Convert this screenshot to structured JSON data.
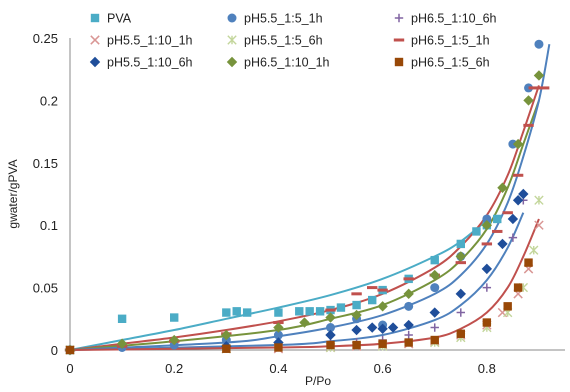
{
  "chart_data": {
    "type": "scatter",
    "xlabel": "P/Po",
    "ylabel": "gwater/gPVA",
    "xlim": [
      0,
      0.95
    ],
    "ylim": [
      0,
      0.25
    ],
    "xticks": [
      "0",
      "0.2",
      "0.4",
      "0.6",
      "0.8"
    ],
    "yticks": [
      "0",
      "0.05",
      "0.1",
      "0.15",
      "0.2",
      "0.25"
    ],
    "grid": false,
    "legend_position": "top",
    "series": [
      {
        "name": "PVA",
        "marker": "square",
        "color": "#4bacc6",
        "points": [
          [
            0,
            0
          ],
          [
            0.1,
            0.025
          ],
          [
            0.2,
            0.026
          ],
          [
            0.3,
            0.03
          ],
          [
            0.32,
            0.031
          ],
          [
            0.34,
            0.03
          ],
          [
            0.4,
            0.03
          ],
          [
            0.44,
            0.031
          ],
          [
            0.46,
            0.031
          ],
          [
            0.48,
            0.031
          ],
          [
            0.5,
            0.032
          ],
          [
            0.52,
            0.034
          ],
          [
            0.55,
            0.036
          ],
          [
            0.58,
            0.04
          ],
          [
            0.6,
            0.048
          ],
          [
            0.65,
            0.057
          ],
          [
            0.7,
            0.072
          ],
          [
            0.75,
            0.085
          ],
          [
            0.78,
            0.095
          ],
          [
            0.8,
            0.1
          ],
          [
            0.82,
            0.105
          ]
        ]
      },
      {
        "name": "pH5.5_1:5_1h",
        "marker": "circle",
        "color": "#4f81bd",
        "points": [
          [
            0,
            0
          ],
          [
            0.1,
            0.002
          ],
          [
            0.2,
            0.004
          ],
          [
            0.3,
            0.008
          ],
          [
            0.4,
            0.012
          ],
          [
            0.5,
            0.018
          ],
          [
            0.55,
            0.025
          ],
          [
            0.6,
            0.02
          ],
          [
            0.65,
            0.035
          ],
          [
            0.7,
            0.05
          ],
          [
            0.75,
            0.075
          ],
          [
            0.8,
            0.105
          ],
          [
            0.85,
            0.165
          ],
          [
            0.88,
            0.21
          ],
          [
            0.9,
            0.245
          ]
        ]
      },
      {
        "name": "pH6.5_1:10_6h",
        "marker": "plus",
        "color": "#8064a2",
        "points": [
          [
            0,
            0
          ],
          [
            0.3,
            0.002
          ],
          [
            0.4,
            0.004
          ],
          [
            0.5,
            0.005
          ],
          [
            0.55,
            0.006
          ],
          [
            0.6,
            0.008
          ],
          [
            0.65,
            0.012
          ],
          [
            0.7,
            0.018
          ],
          [
            0.75,
            0.03
          ],
          [
            0.8,
            0.05
          ],
          [
            0.85,
            0.09
          ],
          [
            0.87,
            0.12
          ]
        ]
      },
      {
        "name": "pH5.5_1:10_1h",
        "marker": "x",
        "color": "#d99694",
        "points": [
          [
            0,
            0
          ],
          [
            0.3,
            0.001
          ],
          [
            0.4,
            0.001
          ],
          [
            0.5,
            0.002
          ],
          [
            0.55,
            0.003
          ],
          [
            0.6,
            0.004
          ],
          [
            0.65,
            0.005
          ],
          [
            0.7,
            0.007
          ],
          [
            0.75,
            0.012
          ],
          [
            0.8,
            0.02
          ],
          [
            0.83,
            0.03
          ],
          [
            0.86,
            0.045
          ],
          [
            0.88,
            0.065
          ],
          [
            0.9,
            0.1
          ]
        ]
      },
      {
        "name": "pH5.5_1:5_6h",
        "marker": "asterisk",
        "color": "#c3d69b",
        "points": [
          [
            0,
            0
          ],
          [
            0.3,
            0.001
          ],
          [
            0.5,
            0.002
          ],
          [
            0.6,
            0.003
          ],
          [
            0.7,
            0.006
          ],
          [
            0.75,
            0.01
          ],
          [
            0.8,
            0.018
          ],
          [
            0.84,
            0.03
          ],
          [
            0.87,
            0.05
          ],
          [
            0.89,
            0.08
          ],
          [
            0.9,
            0.12
          ]
        ]
      },
      {
        "name": "pH6.5_1:5_1h",
        "marker": "dash",
        "color": "#c0504d",
        "points": [
          [
            0,
            0
          ],
          [
            0.1,
            0.003
          ],
          [
            0.2,
            0.007
          ],
          [
            0.3,
            0.013
          ],
          [
            0.4,
            0.022
          ],
          [
            0.5,
            0.032
          ],
          [
            0.55,
            0.045
          ],
          [
            0.58,
            0.05
          ],
          [
            0.6,
            0.048
          ],
          [
            0.65,
            0.057
          ],
          [
            0.7,
            0.06
          ],
          [
            0.75,
            0.07
          ],
          [
            0.8,
            0.085
          ],
          [
            0.82,
            0.095
          ],
          [
            0.84,
            0.11
          ],
          [
            0.86,
            0.14
          ],
          [
            0.88,
            0.18
          ],
          [
            0.89,
            0.21
          ],
          [
            0.91,
            0.21
          ]
        ]
      },
      {
        "name": "pH5.5_1:10_6h",
        "marker": "diamond",
        "color": "#1f4e9a",
        "points": [
          [
            0,
            0
          ],
          [
            0.3,
            0.003
          ],
          [
            0.4,
            0.006
          ],
          [
            0.5,
            0.012
          ],
          [
            0.55,
            0.016
          ],
          [
            0.58,
            0.018
          ],
          [
            0.6,
            0.017
          ],
          [
            0.62,
            0.018
          ],
          [
            0.65,
            0.02
          ],
          [
            0.7,
            0.03
          ],
          [
            0.75,
            0.045
          ],
          [
            0.8,
            0.065
          ],
          [
            0.83,
            0.085
          ],
          [
            0.85,
            0.105
          ],
          [
            0.86,
            0.12
          ],
          [
            0.87,
            0.125
          ]
        ]
      },
      {
        "name": "pH6.5_1:10_1h",
        "marker": "diamond",
        "color": "#77933c",
        "points": [
          [
            0,
            0
          ],
          [
            0.1,
            0.005
          ],
          [
            0.2,
            0.008
          ],
          [
            0.3,
            0.012
          ],
          [
            0.4,
            0.018
          ],
          [
            0.45,
            0.022
          ],
          [
            0.5,
            0.026
          ],
          [
            0.55,
            0.028
          ],
          [
            0.6,
            0.035
          ],
          [
            0.65,
            0.045
          ],
          [
            0.7,
            0.06
          ],
          [
            0.75,
            0.075
          ],
          [
            0.8,
            0.1
          ],
          [
            0.83,
            0.13
          ],
          [
            0.86,
            0.165
          ],
          [
            0.88,
            0.2
          ],
          [
            0.9,
            0.22
          ]
        ]
      },
      {
        "name": "pH6.5_1:5_6h",
        "marker": "square",
        "color": "#984807",
        "points": [
          [
            0,
            0
          ],
          [
            0.3,
            0.001
          ],
          [
            0.4,
            0.002
          ],
          [
            0.5,
            0.004
          ],
          [
            0.55,
            0.004
          ],
          [
            0.6,
            0.005
          ],
          [
            0.65,
            0.006
          ],
          [
            0.7,
            0.008
          ],
          [
            0.75,
            0.013
          ],
          [
            0.8,
            0.022
          ],
          [
            0.84,
            0.035
          ],
          [
            0.86,
            0.05
          ],
          [
            0.88,
            0.07
          ]
        ]
      }
    ],
    "fit_lines": [
      {
        "color": "#4bacc6",
        "points": [
          [
            0,
            0
          ],
          [
            0.1,
            0.008
          ],
          [
            0.2,
            0.016
          ],
          [
            0.3,
            0.025
          ],
          [
            0.4,
            0.034
          ],
          [
            0.5,
            0.044
          ],
          [
            0.6,
            0.057
          ],
          [
            0.7,
            0.075
          ],
          [
            0.75,
            0.087
          ],
          [
            0.8,
            0.104
          ]
        ]
      },
      {
        "color": "#c0504d",
        "points": [
          [
            0,
            0
          ],
          [
            0.1,
            0.005
          ],
          [
            0.2,
            0.01
          ],
          [
            0.3,
            0.016
          ],
          [
            0.4,
            0.023
          ],
          [
            0.5,
            0.032
          ],
          [
            0.6,
            0.045
          ],
          [
            0.7,
            0.066
          ],
          [
            0.75,
            0.083
          ],
          [
            0.8,
            0.108
          ],
          [
            0.84,
            0.14
          ],
          [
            0.87,
            0.175
          ],
          [
            0.9,
            0.212
          ]
        ]
      },
      {
        "color": "#77933c",
        "points": [
          [
            0,
            0
          ],
          [
            0.2,
            0.007
          ],
          [
            0.4,
            0.016
          ],
          [
            0.5,
            0.025
          ],
          [
            0.6,
            0.036
          ],
          [
            0.7,
            0.056
          ],
          [
            0.75,
            0.072
          ],
          [
            0.8,
            0.097
          ],
          [
            0.84,
            0.13
          ],
          [
            0.87,
            0.165
          ],
          [
            0.9,
            0.2
          ]
        ]
      },
      {
        "color": "#4f81bd",
        "points": [
          [
            0,
            0
          ],
          [
            0.3,
            0.006
          ],
          [
            0.4,
            0.011
          ],
          [
            0.5,
            0.018
          ],
          [
            0.6,
            0.028
          ],
          [
            0.7,
            0.045
          ],
          [
            0.75,
            0.06
          ],
          [
            0.8,
            0.085
          ],
          [
            0.84,
            0.118
          ],
          [
            0.87,
            0.155
          ],
          [
            0.9,
            0.2
          ],
          [
            0.92,
            0.245
          ]
        ]
      },
      {
        "color": "#4f81bd",
        "points": [
          [
            0,
            0
          ],
          [
            0.4,
            0.004
          ],
          [
            0.5,
            0.007
          ],
          [
            0.6,
            0.012
          ],
          [
            0.7,
            0.024
          ],
          [
            0.75,
            0.036
          ],
          [
            0.8,
            0.056
          ],
          [
            0.84,
            0.082
          ],
          [
            0.87,
            0.11
          ]
        ]
      },
      {
        "color": "#c0504d",
        "points": [
          [
            0,
            0
          ],
          [
            0.4,
            0.002
          ],
          [
            0.5,
            0.003
          ],
          [
            0.6,
            0.005
          ],
          [
            0.7,
            0.01
          ],
          [
            0.75,
            0.017
          ],
          [
            0.8,
            0.03
          ],
          [
            0.84,
            0.05
          ],
          [
            0.87,
            0.075
          ],
          [
            0.9,
            0.105
          ]
        ]
      }
    ]
  }
}
